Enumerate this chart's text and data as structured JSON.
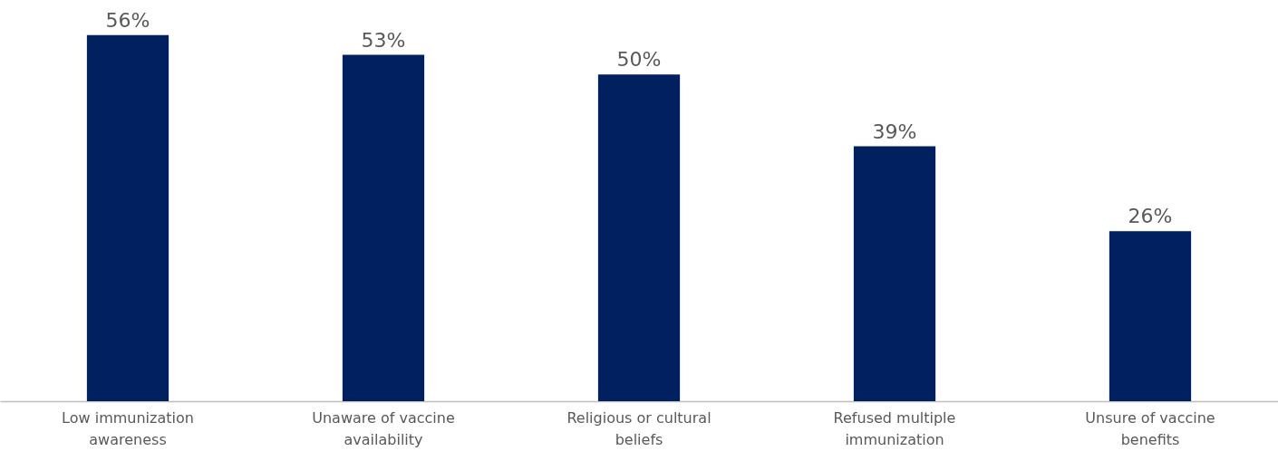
{
  "chart_data": {
    "type": "bar",
    "categories": [
      "Low immunization\nawareness",
      "Unaware of vaccine\navailability",
      "Religious or cultural\nbeliefs",
      "Refused multiple\nimmunization",
      "Unsure of vaccine\nbenefits"
    ],
    "values": [
      56,
      53,
      50,
      39,
      26
    ],
    "value_labels": [
      "56%",
      "53%",
      "50%",
      "39%",
      "26%"
    ],
    "color": "#002060",
    "grid": false
  }
}
